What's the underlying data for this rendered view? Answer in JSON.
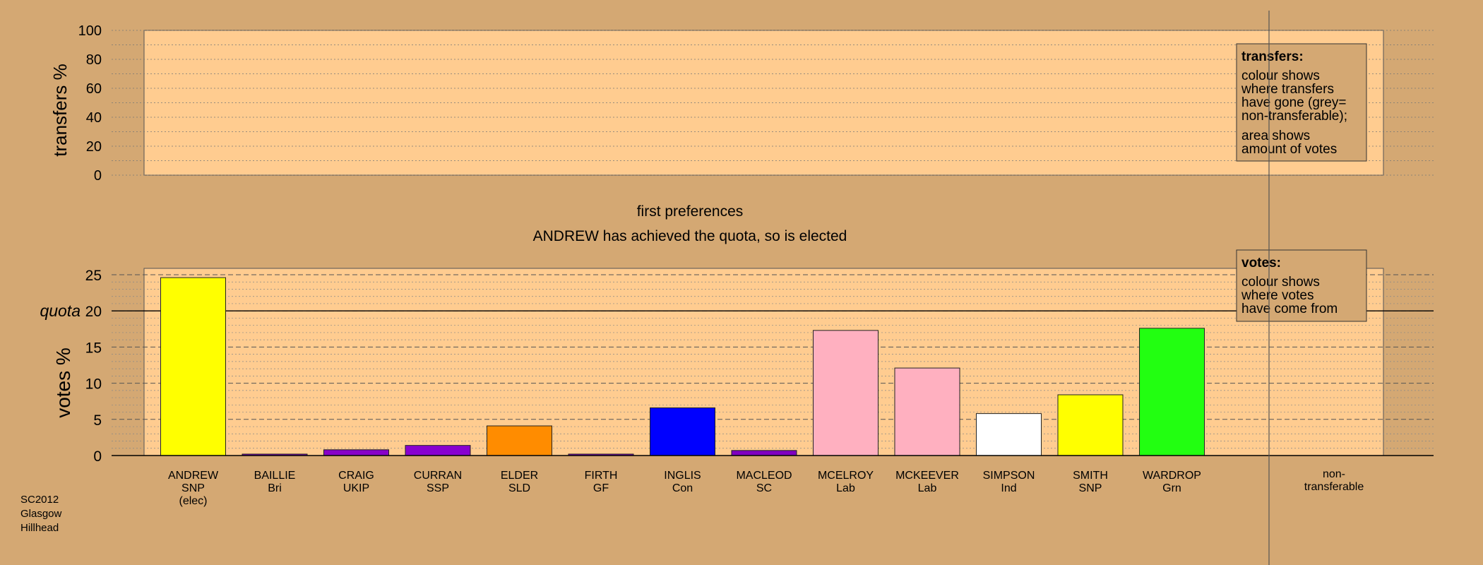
{
  "colors": {
    "background": "#D4A873",
    "plot_fill": "#FFCC90",
    "legend_fill": "#D4A873"
  },
  "top_panel": {
    "ylabel": "transfers %",
    "ylim": [
      0,
      100
    ],
    "ticks": [
      "0",
      "20",
      "40",
      "60",
      "80",
      "100"
    ],
    "legend": {
      "title": "transfers:",
      "lines1": [
        "colour shows",
        "where transfers",
        "have gone (grey=",
        "non-transferable);"
      ],
      "lines2": [
        "area shows",
        "amount of votes"
      ]
    }
  },
  "middle": {
    "title": "first preferences",
    "subtitle": "ANDREW has achieved the quota, so is elected"
  },
  "bottom_panel": {
    "ylabel": "votes %",
    "quota_label": "quota",
    "ylim": [
      0,
      26
    ],
    "ticks": [
      "0",
      "5",
      "10",
      "15",
      "20",
      "25"
    ],
    "legend": {
      "title": "votes:",
      "lines": [
        "colour shows",
        "where votes",
        "have come from"
      ]
    }
  },
  "footer": {
    "lines": [
      "SC2012",
      "Glasgow",
      "Hillhead"
    ]
  },
  "chart_data": {
    "type": "bar",
    "quota": 20,
    "categories": [
      {
        "lines": [
          "ANDREW",
          "SNP",
          "(elec)"
        ],
        "value": 24.6,
        "color": "#FFFF00"
      },
      {
        "lines": [
          "BAILLIE",
          "Bri"
        ],
        "value": 0.2,
        "color": "#8000C0"
      },
      {
        "lines": [
          "CRAIG",
          "UKIP"
        ],
        "value": 0.8,
        "color": "#8800C8"
      },
      {
        "lines": [
          "CURRAN",
          "SSP"
        ],
        "value": 1.4,
        "color": "#8800D0"
      },
      {
        "lines": [
          "ELDER",
          "SLD"
        ],
        "value": 4.1,
        "color": "#FF8C00"
      },
      {
        "lines": [
          "FIRTH",
          "GF"
        ],
        "value": 0.2,
        "color": "#8000C0"
      },
      {
        "lines": [
          "INGLIS",
          "Con"
        ],
        "value": 6.6,
        "color": "#0000FF"
      },
      {
        "lines": [
          "MACLEOD",
          "SC"
        ],
        "value": 0.7,
        "color": "#8000C0"
      },
      {
        "lines": [
          "MCELROY",
          "Lab"
        ],
        "value": 17.3,
        "color": "#FFB0C0"
      },
      {
        "lines": [
          "MCKEEVER",
          "Lab"
        ],
        "value": 12.1,
        "color": "#FFB0C0"
      },
      {
        "lines": [
          "SIMPSON",
          "Ind"
        ],
        "value": 5.8,
        "color": "#FFFFFF"
      },
      {
        "lines": [
          "SMITH",
          "SNP"
        ],
        "value": 8.4,
        "color": "#FFFF00"
      },
      {
        "lines": [
          "WARDROP",
          "Grn"
        ],
        "value": 17.6,
        "color": "#22FF11"
      }
    ],
    "extra_category": {
      "lines": [
        "non-",
        "transferable"
      ]
    }
  }
}
